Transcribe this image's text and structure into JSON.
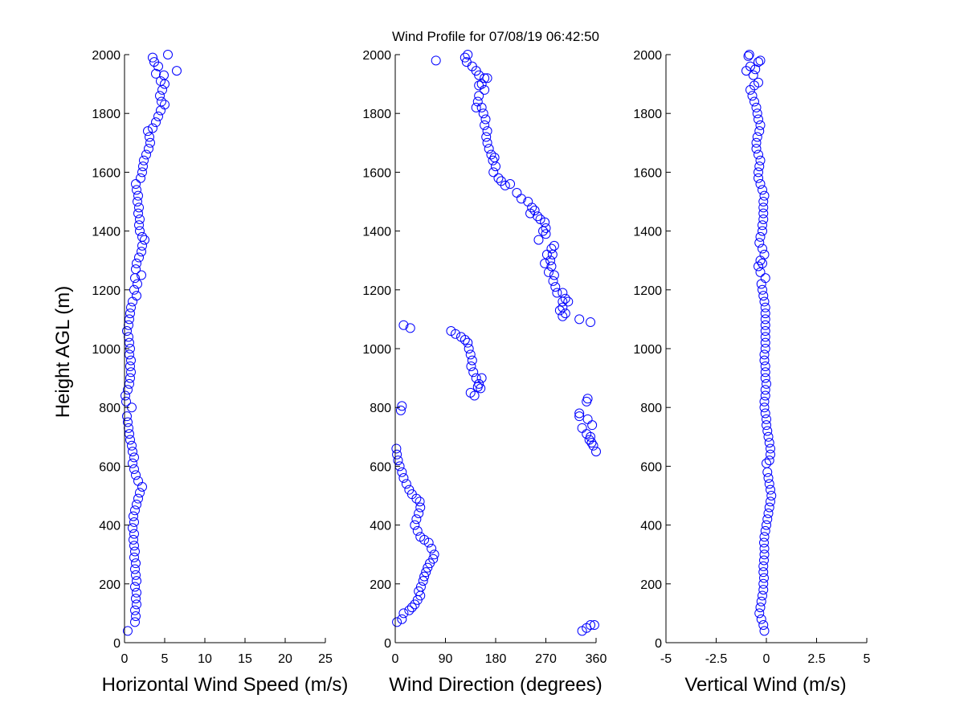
{
  "title": "Wind Profile for  07/08/19 06:42:50",
  "ylabel": "Height AGL (m)",
  "marker_color": "#0000ff",
  "chart_data": [
    {
      "type": "scatter",
      "xlabel": "Horizontal Wind Speed (m/s)",
      "xlim": [
        0,
        25
      ],
      "ylim": [
        0,
        2000
      ],
      "xticks": [
        0,
        5,
        10,
        15,
        20,
        25
      ],
      "xtick_labels": [
        "0",
        "5",
        "10",
        "15",
        "20",
        "25"
      ],
      "yticks": [
        0,
        200,
        400,
        600,
        800,
        1000,
        1200,
        1400,
        1600,
        1800,
        2000
      ],
      "points": [
        [
          0.4,
          40
        ],
        [
          1.3,
          70
        ],
        [
          1.4,
          90
        ],
        [
          1.3,
          110
        ],
        [
          1.5,
          130
        ],
        [
          1.4,
          150
        ],
        [
          1.5,
          170
        ],
        [
          1.3,
          190
        ],
        [
          1.5,
          210
        ],
        [
          1.4,
          230
        ],
        [
          1.3,
          250
        ],
        [
          1.4,
          270
        ],
        [
          1.2,
          290
        ],
        [
          1.3,
          310
        ],
        [
          1.2,
          330
        ],
        [
          1.1,
          350
        ],
        [
          1.2,
          370
        ],
        [
          1.0,
          390
        ],
        [
          1.2,
          410
        ],
        [
          1.1,
          430
        ],
        [
          1.3,
          450
        ],
        [
          1.5,
          470
        ],
        [
          1.7,
          490
        ],
        [
          1.9,
          510
        ],
        [
          2.2,
          530
        ],
        [
          1.7,
          550
        ],
        [
          1.4,
          570
        ],
        [
          1.2,
          590
        ],
        [
          1.0,
          610
        ],
        [
          1.2,
          630
        ],
        [
          1.0,
          650
        ],
        [
          0.9,
          670
        ],
        [
          0.7,
          690
        ],
        [
          0.6,
          710
        ],
        [
          0.5,
          730
        ],
        [
          0.4,
          750
        ],
        [
          0.3,
          770
        ],
        [
          0.9,
          800
        ],
        [
          0.2,
          820
        ],
        [
          0.1,
          840
        ],
        [
          0.4,
          860
        ],
        [
          0.6,
          880
        ],
        [
          0.7,
          900
        ],
        [
          0.8,
          920
        ],
        [
          0.7,
          940
        ],
        [
          0.8,
          960
        ],
        [
          0.6,
          980
        ],
        [
          0.7,
          1000
        ],
        [
          0.6,
          1020
        ],
        [
          0.5,
          1040
        ],
        [
          0.3,
          1060
        ],
        [
          0.5,
          1080
        ],
        [
          0.6,
          1100
        ],
        [
          0.7,
          1120
        ],
        [
          0.8,
          1140
        ],
        [
          1.0,
          1160
        ],
        [
          1.5,
          1180
        ],
        [
          1.2,
          1200
        ],
        [
          1.6,
          1220
        ],
        [
          1.3,
          1240
        ],
        [
          2.1,
          1250
        ],
        [
          1.4,
          1270
        ],
        [
          1.5,
          1290
        ],
        [
          1.8,
          1310
        ],
        [
          2.1,
          1330
        ],
        [
          2.2,
          1350
        ],
        [
          2.5,
          1370
        ],
        [
          2.2,
          1380
        ],
        [
          1.9,
          1400
        ],
        [
          1.8,
          1420
        ],
        [
          1.9,
          1440
        ],
        [
          1.7,
          1460
        ],
        [
          1.8,
          1480
        ],
        [
          1.6,
          1500
        ],
        [
          1.7,
          1520
        ],
        [
          1.5,
          1540
        ],
        [
          1.4,
          1560
        ],
        [
          2.0,
          1580
        ],
        [
          2.2,
          1600
        ],
        [
          2.3,
          1620
        ],
        [
          2.4,
          1640
        ],
        [
          2.7,
          1660
        ],
        [
          3.0,
          1680
        ],
        [
          3.2,
          1700
        ],
        [
          3.1,
          1720
        ],
        [
          2.9,
          1740
        ],
        [
          3.5,
          1750
        ],
        [
          3.9,
          1770
        ],
        [
          4.2,
          1790
        ],
        [
          4.5,
          1810
        ],
        [
          5.0,
          1830
        ],
        [
          4.6,
          1840
        ],
        [
          4.4,
          1860
        ],
        [
          4.7,
          1880
        ],
        [
          5.0,
          1900
        ],
        [
          4.5,
          1910
        ],
        [
          4.9,
          1930
        ],
        [
          3.9,
          1935
        ],
        [
          6.5,
          1945
        ],
        [
          4.2,
          1960
        ],
        [
          3.7,
          1975
        ],
        [
          3.5,
          1990
        ],
        [
          5.4,
          2000
        ]
      ]
    },
    {
      "type": "scatter",
      "xlabel": "Wind Direction (degrees)",
      "xlim": [
        0,
        360
      ],
      "ylim": [
        0,
        2000
      ],
      "xticks": [
        0,
        90,
        180,
        270,
        360
      ],
      "xtick_labels": [
        "0",
        "90",
        "180",
        "270",
        "360"
      ],
      "yticks": [
        0,
        200,
        400,
        600,
        800,
        1000,
        1200,
        1400,
        1600,
        1800,
        2000
      ],
      "points": [
        [
          3,
          70
        ],
        [
          12,
          80
        ],
        [
          15,
          100
        ],
        [
          25,
          110
        ],
        [
          30,
          120
        ],
        [
          35,
          130
        ],
        [
          40,
          145
        ],
        [
          45,
          160
        ],
        [
          42,
          175
        ],
        [
          46,
          190
        ],
        [
          50,
          210
        ],
        [
          52,
          225
        ],
        [
          55,
          240
        ],
        [
          58,
          255
        ],
        [
          62,
          270
        ],
        [
          68,
          285
        ],
        [
          70,
          300
        ],
        [
          65,
          320
        ],
        [
          60,
          340
        ],
        [
          52,
          350
        ],
        [
          45,
          360
        ],
        [
          40,
          380
        ],
        [
          35,
          400
        ],
        [
          38,
          420
        ],
        [
          42,
          440
        ],
        [
          45,
          460
        ],
        [
          44,
          480
        ],
        [
          38,
          490
        ],
        [
          30,
          505
        ],
        [
          25,
          520
        ],
        [
          20,
          540
        ],
        [
          15,
          560
        ],
        [
          12,
          580
        ],
        [
          8,
          600
        ],
        [
          5,
          620
        ],
        [
          3,
          640
        ],
        [
          2,
          660
        ],
        [
          10,
          790
        ],
        [
          12,
          805
        ],
        [
          15,
          1080
        ],
        [
          27,
          1070
        ],
        [
          100,
          1060
        ],
        [
          108,
          1050
        ],
        [
          118,
          1040
        ],
        [
          125,
          1030
        ],
        [
          130,
          1020
        ],
        [
          132,
          1000
        ],
        [
          135,
          980
        ],
        [
          138,
          960
        ],
        [
          136,
          940
        ],
        [
          140,
          920
        ],
        [
          145,
          900
        ],
        [
          155,
          900
        ],
        [
          150,
          880
        ],
        [
          148,
          870
        ],
        [
          153,
          865
        ],
        [
          135,
          850
        ],
        [
          142,
          840
        ],
        [
          73,
          1980
        ],
        [
          125,
          1990
        ],
        [
          130,
          2000
        ],
        [
          128,
          1975
        ],
        [
          138,
          1960
        ],
        [
          145,
          1945
        ],
        [
          150,
          1930
        ],
        [
          160,
          1920
        ],
        [
          165,
          1920
        ],
        [
          155,
          1900
        ],
        [
          150,
          1895
        ],
        [
          160,
          1880
        ],
        [
          150,
          1860
        ],
        [
          148,
          1840
        ],
        [
          145,
          1820
        ],
        [
          155,
          1820
        ],
        [
          158,
          1800
        ],
        [
          162,
          1780
        ],
        [
          160,
          1760
        ],
        [
          165,
          1740
        ],
        [
          163,
          1720
        ],
        [
          165,
          1700
        ],
        [
          168,
          1680
        ],
        [
          172,
          1660
        ],
        [
          178,
          1650
        ],
        [
          175,
          1640
        ],
        [
          180,
          1620
        ],
        [
          176,
          1600
        ],
        [
          185,
          1580
        ],
        [
          190,
          1570
        ],
        [
          197,
          1555
        ],
        [
          206,
          1560
        ],
        [
          218,
          1530
        ],
        [
          226,
          1510
        ],
        [
          238,
          1500
        ],
        [
          245,
          1480
        ],
        [
          250,
          1470
        ],
        [
          242,
          1460
        ],
        [
          255,
          1450
        ],
        [
          260,
          1440
        ],
        [
          268,
          1430
        ],
        [
          270,
          1410
        ],
        [
          265,
          1400
        ],
        [
          270,
          1390
        ],
        [
          257,
          1370
        ],
        [
          285,
          1350
        ],
        [
          280,
          1340
        ],
        [
          282,
          1320
        ],
        [
          272,
          1320
        ],
        [
          278,
          1300
        ],
        [
          268,
          1290
        ],
        [
          280,
          1280
        ],
        [
          275,
          1260
        ],
        [
          285,
          1250
        ],
        [
          283,
          1230
        ],
        [
          287,
          1210
        ],
        [
          290,
          1190
        ],
        [
          300,
          1190
        ],
        [
          305,
          1170
        ],
        [
          300,
          1160
        ],
        [
          310,
          1160
        ],
        [
          300,
          1140
        ],
        [
          295,
          1130
        ],
        [
          305,
          1120
        ],
        [
          300,
          1110
        ],
        [
          330,
          1100
        ],
        [
          350,
          1090
        ],
        [
          345,
          830
        ],
        [
          343,
          820
        ],
        [
          330,
          780
        ],
        [
          330,
          770
        ],
        [
          345,
          760
        ],
        [
          353,
          740
        ],
        [
          335,
          730
        ],
        [
          343,
          710
        ],
        [
          350,
          700
        ],
        [
          348,
          690
        ],
        [
          352,
          680
        ],
        [
          355,
          670
        ],
        [
          360,
          650
        ],
        [
          350,
          60
        ],
        [
          343,
          50
        ],
        [
          357,
          60
        ],
        [
          335,
          40
        ]
      ]
    },
    {
      "type": "scatter",
      "xlabel": "Vertical Wind (m/s)",
      "xlim": [
        -5,
        5
      ],
      "ylim": [
        0,
        2000
      ],
      "xticks": [
        -5,
        -2.5,
        0,
        2.5,
        5
      ],
      "xtick_labels": [
        "-5",
        "-2.5",
        "0",
        "2.5",
        "5"
      ],
      "yticks": [
        0,
        200,
        400,
        600,
        800,
        1000,
        1200,
        1400,
        1600,
        1800,
        2000
      ],
      "points": [
        [
          -0.1,
          40
        ],
        [
          -0.15,
          60
        ],
        [
          -0.25,
          80
        ],
        [
          -0.35,
          100
        ],
        [
          -0.3,
          120
        ],
        [
          -0.25,
          140
        ],
        [
          -0.2,
          160
        ],
        [
          -0.15,
          180
        ],
        [
          -0.15,
          200
        ],
        [
          -0.12,
          220
        ],
        [
          -0.15,
          240
        ],
        [
          -0.15,
          260
        ],
        [
          -0.12,
          280
        ],
        [
          -0.1,
          300
        ],
        [
          -0.1,
          320
        ],
        [
          -0.12,
          340
        ],
        [
          -0.1,
          360
        ],
        [
          -0.05,
          380
        ],
        [
          0.0,
          400
        ],
        [
          0.05,
          420
        ],
        [
          0.1,
          440
        ],
        [
          0.15,
          460
        ],
        [
          0.2,
          480
        ],
        [
          0.25,
          500
        ],
        [
          0.2,
          520
        ],
        [
          0.15,
          540
        ],
        [
          0.1,
          560
        ],
        [
          0.05,
          580
        ],
        [
          0.0,
          610
        ],
        [
          0.15,
          620
        ],
        [
          0.2,
          640
        ],
        [
          0.2,
          660
        ],
        [
          0.15,
          680
        ],
        [
          0.1,
          700
        ],
        [
          0.05,
          720
        ],
        [
          0.0,
          740
        ],
        [
          0.0,
          760
        ],
        [
          -0.05,
          780
        ],
        [
          -0.1,
          800
        ],
        [
          -0.1,
          820
        ],
        [
          -0.05,
          840
        ],
        [
          -0.05,
          860
        ],
        [
          0.0,
          880
        ],
        [
          -0.05,
          900
        ],
        [
          -0.05,
          920
        ],
        [
          -0.05,
          940
        ],
        [
          -0.1,
          960
        ],
        [
          -0.1,
          980
        ],
        [
          -0.05,
          1000
        ],
        [
          -0.05,
          1020
        ],
        [
          -0.05,
          1040
        ],
        [
          -0.05,
          1060
        ],
        [
          -0.05,
          1080
        ],
        [
          -0.05,
          1100
        ],
        [
          -0.05,
          1120
        ],
        [
          -0.05,
          1140
        ],
        [
          -0.1,
          1160
        ],
        [
          -0.15,
          1180
        ],
        [
          -0.2,
          1200
        ],
        [
          -0.25,
          1220
        ],
        [
          -0.05,
          1240
        ],
        [
          -0.3,
          1260
        ],
        [
          -0.4,
          1280
        ],
        [
          -0.2,
          1290
        ],
        [
          -0.3,
          1300
        ],
        [
          -0.1,
          1320
        ],
        [
          -0.2,
          1340
        ],
        [
          -0.35,
          1360
        ],
        [
          -0.3,
          1380
        ],
        [
          -0.2,
          1400
        ],
        [
          -0.2,
          1420
        ],
        [
          -0.15,
          1440
        ],
        [
          -0.15,
          1460
        ],
        [
          -0.15,
          1480
        ],
        [
          -0.15,
          1500
        ],
        [
          -0.1,
          1520
        ],
        [
          -0.2,
          1540
        ],
        [
          -0.3,
          1560
        ],
        [
          -0.4,
          1580
        ],
        [
          -0.4,
          1600
        ],
        [
          -0.35,
          1620
        ],
        [
          -0.3,
          1640
        ],
        [
          -0.4,
          1660
        ],
        [
          -0.5,
          1680
        ],
        [
          -0.5,
          1700
        ],
        [
          -0.45,
          1720
        ],
        [
          -0.35,
          1740
        ],
        [
          -0.3,
          1760
        ],
        [
          -0.4,
          1780
        ],
        [
          -0.45,
          1800
        ],
        [
          -0.5,
          1820
        ],
        [
          -0.6,
          1840
        ],
        [
          -0.7,
          1860
        ],
        [
          -0.8,
          1880
        ],
        [
          -0.6,
          1895
        ],
        [
          -0.4,
          1905
        ],
        [
          -0.65,
          1930
        ],
        [
          -0.55,
          1950
        ],
        [
          -1.0,
          1945
        ],
        [
          -0.8,
          1960
        ],
        [
          -0.4,
          1975
        ],
        [
          -0.3,
          1980
        ],
        [
          -0.9,
          1995
        ],
        [
          -0.85,
          2000
        ]
      ]
    }
  ]
}
